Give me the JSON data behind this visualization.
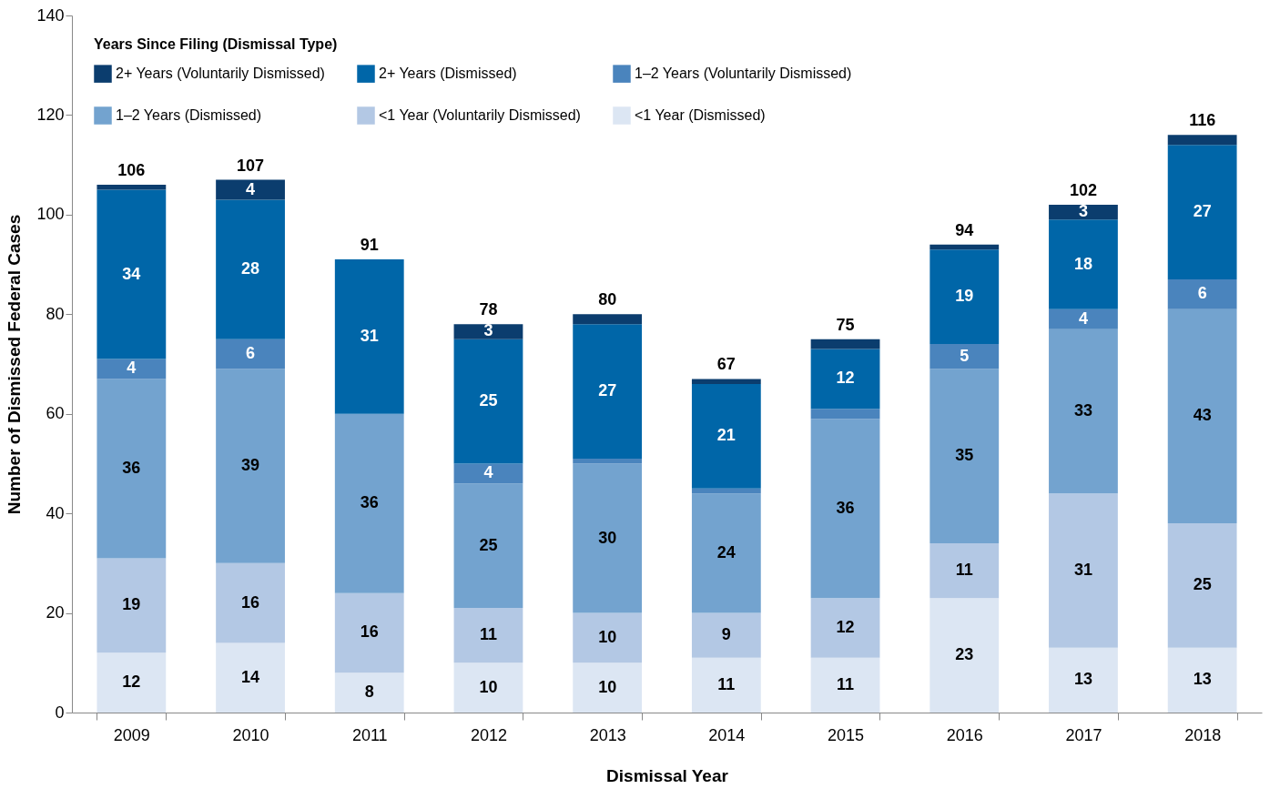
{
  "chart_data": {
    "type": "bar",
    "stacked": true,
    "xlabel": "Dismissal Year",
    "ylabel": "Number of Dismissed Federal Cases",
    "legend_title": "Years Since Filing (Dismissal Type)",
    "legend": "top left",
    "grid": false,
    "categories": [
      "2009",
      "2010",
      "2011",
      "2012",
      "2013",
      "2014",
      "2015",
      "2016",
      "2017",
      "2018"
    ],
    "ylim": [
      0,
      140
    ],
    "yticks": [
      0,
      20,
      40,
      60,
      80,
      100,
      120,
      140
    ],
    "series": [
      {
        "name": "<1 Year (Dismissed)",
        "color": "#dce6f3",
        "values": [
          12,
          14,
          8,
          10,
          10,
          11,
          11,
          23,
          13,
          13
        ],
        "value_labels": [
          "12",
          "14",
          "8",
          "10",
          "10",
          "11",
          "11",
          "23",
          "13",
          "13"
        ]
      },
      {
        "name": "<1 Year (Voluntarily Dismissed)",
        "color": "#b3c8e4",
        "values": [
          19,
          16,
          16,
          11,
          10,
          9,
          12,
          11,
          31,
          25
        ],
        "value_labels": [
          "19",
          "16",
          "16",
          "11",
          "10",
          "9",
          "12",
          "11",
          "31",
          "25"
        ]
      },
      {
        "name": "1–2 Years (Dismissed)",
        "color": "#73a3cf",
        "values": [
          36,
          39,
          36,
          25,
          30,
          24,
          36,
          35,
          33,
          43
        ],
        "value_labels": [
          "36",
          "39",
          "36",
          "25",
          "30",
          "24",
          "36",
          "35",
          "33",
          "43"
        ]
      },
      {
        "name": "1–2 Years (Voluntarily Dismissed)",
        "color": "#4a84bd",
        "values": [
          4,
          6,
          0,
          4,
          1,
          1,
          2,
          5,
          4,
          6
        ],
        "value_labels": [
          "4",
          "6",
          null,
          "4",
          null,
          null,
          null,
          "5",
          "4",
          "6"
        ]
      },
      {
        "name": "2+ Years (Dismissed)",
        "color": "#0066a8",
        "values": [
          34,
          28,
          31,
          25,
          27,
          21,
          12,
          19,
          18,
          27
        ],
        "value_labels": [
          "34",
          "28",
          "31",
          "25",
          "27",
          "21",
          "12",
          "19",
          "18",
          "27"
        ]
      },
      {
        "name": "2+ Years (Voluntarily Dismissed)",
        "color": "#0b3d6e",
        "values": [
          1,
          4,
          0,
          3,
          2,
          1,
          2,
          1,
          3,
          2
        ],
        "value_labels": [
          null,
          "4",
          null,
          "3",
          null,
          null,
          null,
          null,
          "3",
          null
        ]
      }
    ],
    "totals": [
      "106",
      "107",
      "91",
      "78",
      "80",
      "67",
      "75",
      "94",
      "102",
      "116"
    ]
  }
}
